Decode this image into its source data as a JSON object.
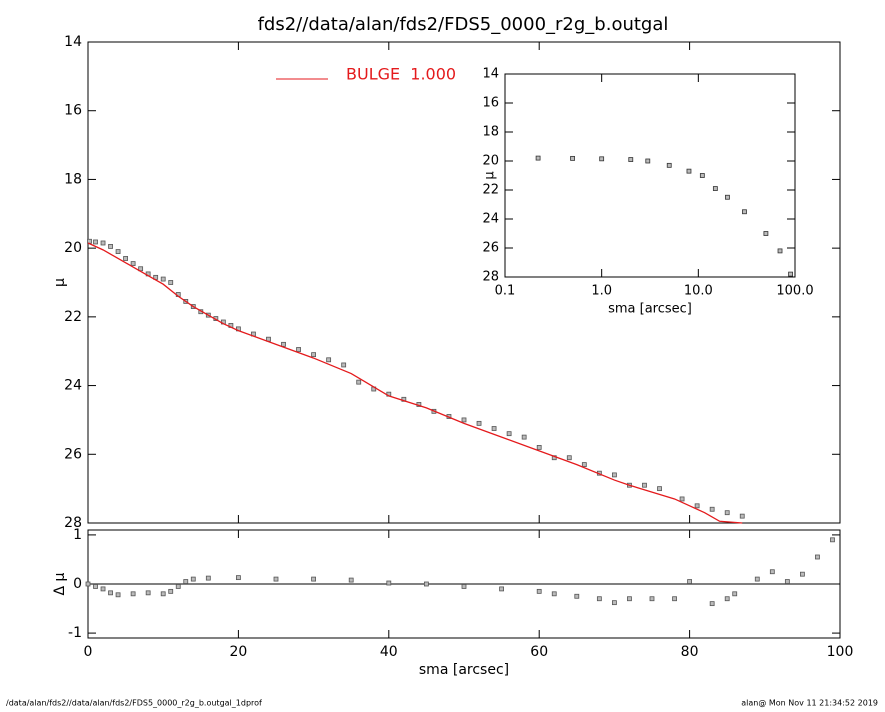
{
  "title": "fds2//data/alan/fds2/FDS5_0000_r2g_b.outgal",
  "footer_left": "/data/alan/fds2//data/alan/fds2/FDS5_0000_r2g_b.outgal_1dprof",
  "footer_right": "alan@  Mon Nov 11 21:34:52 2019",
  "chart_data": [
    {
      "type": "scatter",
      "ylabel": "μ",
      "xlim": [
        0,
        100
      ],
      "xticks": [
        0,
        20,
        40,
        60,
        80,
        100
      ],
      "show_xtick_labels": false,
      "ylim": [
        28,
        14
      ],
      "yticks": [
        14,
        16,
        18,
        20,
        22,
        24,
        26,
        28
      ],
      "legend": "upper center",
      "series": [
        {
          "mode": "markers",
          "color": "#555555",
          "x": [
            0.2,
            1,
            2,
            3,
            4,
            5,
            6,
            7,
            8,
            9,
            10,
            11,
            12,
            13,
            14,
            15,
            16,
            17,
            18,
            19,
            20,
            22,
            24,
            26,
            28,
            30,
            32,
            34,
            36,
            38,
            40,
            42,
            44,
            46,
            48,
            50,
            52,
            54,
            56,
            58,
            60,
            62,
            64,
            66,
            68,
            70,
            72,
            74,
            76,
            79,
            81,
            83,
            85,
            87
          ],
          "values": [
            19.8,
            19.82,
            19.85,
            19.95,
            20.1,
            20.3,
            20.45,
            20.6,
            20.75,
            20.85,
            20.9,
            21.0,
            21.35,
            21.55,
            21.7,
            21.85,
            21.95,
            22.05,
            22.15,
            22.25,
            22.35,
            22.5,
            22.65,
            22.8,
            22.95,
            23.1,
            23.25,
            23.4,
            23.9,
            24.1,
            24.25,
            24.4,
            24.55,
            24.75,
            24.9,
            25.0,
            25.1,
            25.25,
            25.4,
            25.5,
            25.8,
            26.1,
            26.1,
            26.3,
            26.55,
            26.6,
            26.9,
            26.9,
            27.0,
            27.3,
            27.5,
            27.6,
            27.7,
            27.8
          ]
        },
        {
          "name": "BULGE  1.000",
          "mode": "line",
          "color": "#e41a1c",
          "x": [
            0,
            2,
            4,
            6,
            8,
            10,
            12,
            14,
            16,
            18,
            20,
            25,
            30,
            35,
            40,
            45,
            50,
            55,
            60,
            65,
            70,
            72,
            75,
            78,
            80,
            82,
            84,
            87
          ],
          "values": [
            19.85,
            20.05,
            20.3,
            20.55,
            20.8,
            21.05,
            21.4,
            21.7,
            21.95,
            22.2,
            22.4,
            22.8,
            23.2,
            23.65,
            24.3,
            24.65,
            25.1,
            25.5,
            25.9,
            26.3,
            26.75,
            26.9,
            27.1,
            27.3,
            27.5,
            27.7,
            27.95,
            28.0
          ]
        }
      ]
    },
    {
      "type": "scatter",
      "ylabel": "Δ μ",
      "xlabel": "sma [arcsec]",
      "xlim": [
        0,
        100
      ],
      "xticks": [
        0,
        20,
        40,
        60,
        80,
        100
      ],
      "show_xtick_labels": true,
      "ylim": [
        -1.1,
        1.1
      ],
      "yticks": [
        -1,
        0,
        1
      ],
      "zero_line": true,
      "series": [
        {
          "mode": "markers",
          "color": "#555555",
          "x": [
            0,
            1,
            2,
            3,
            4,
            6,
            8,
            10,
            11,
            12,
            13,
            14,
            16,
            20,
            25,
            30,
            35,
            40,
            45,
            50,
            55,
            60,
            62,
            65,
            68,
            70,
            72,
            75,
            78,
            80,
            83,
            85,
            86,
            89,
            91,
            93,
            95,
            97,
            99
          ],
          "values": [
            0,
            -0.05,
            -0.1,
            -0.18,
            -0.22,
            -0.2,
            -0.18,
            -0.2,
            -0.15,
            -0.05,
            0.05,
            0.1,
            0.12,
            0.13,
            0.1,
            0.1,
            0.08,
            0.02,
            0,
            -0.05,
            -0.1,
            -0.15,
            -0.2,
            -0.25,
            -0.3,
            -0.38,
            -0.3,
            -0.3,
            -0.3,
            0.05,
            -0.4,
            -0.3,
            -0.2,
            0.1,
            0.25,
            0.05,
            0.2,
            0.55,
            0.9
          ]
        }
      ]
    },
    {
      "type": "scatter",
      "ylabel": "μ",
      "xlabel": "sma [arcsec]",
      "xscale": "log",
      "xlim": [
        0.1,
        100
      ],
      "xticks": [
        {
          "value": 0.1,
          "label": "0.1"
        },
        {
          "value": 1,
          "label": "1.0"
        },
        {
          "value": 10,
          "label": "10.0"
        },
        {
          "value": 100,
          "label": "100.0"
        }
      ],
      "show_xtick_labels": true,
      "ylim": [
        28,
        14
      ],
      "yticks": [
        14,
        16,
        18,
        20,
        22,
        24,
        26,
        28
      ],
      "series": [
        {
          "mode": "markers",
          "color": "#333333",
          "x": [
            0.22,
            0.5,
            1,
            2,
            3,
            5,
            8,
            11,
            15,
            20,
            30,
            50,
            70,
            90
          ],
          "values": [
            19.8,
            19.82,
            19.85,
            19.9,
            20.0,
            20.3,
            20.7,
            21.0,
            21.9,
            22.5,
            23.5,
            25.0,
            26.2,
            27.8
          ]
        }
      ]
    }
  ]
}
